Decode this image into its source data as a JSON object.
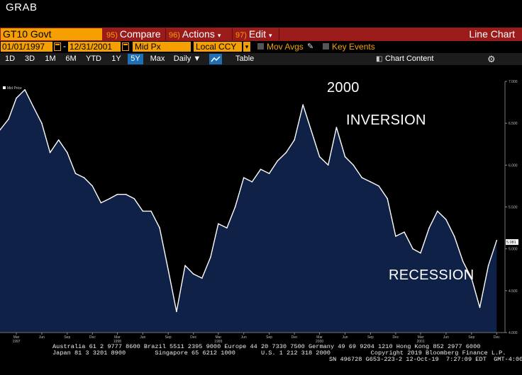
{
  "window": {
    "title": "GRAB"
  },
  "toolbar1": {
    "ticker": "GT10 Govt",
    "compare_num": "95)",
    "compare": "Compare",
    "actions_num": "96)",
    "actions": "Actions",
    "edit_num": "97)",
    "edit": "Edit",
    "view_label": "Line Chart"
  },
  "toolbar2": {
    "start_date": "01/01/1997",
    "end_date": "12/31/2001",
    "separator": "-",
    "field": "Mid Px",
    "currency": "Local CCY",
    "mov_avgs": "Mov Avgs",
    "key_events": "Key Events"
  },
  "toolbar3": {
    "ranges": [
      "1D",
      "3D",
      "1M",
      "6M",
      "YTD",
      "1Y",
      "5Y",
      "Max"
    ],
    "active_range": "5Y",
    "frequency": "Daily",
    "table": "Table",
    "chart_content": "Chart Content"
  },
  "annotations": {
    "year_2000": "2000",
    "inversion": "INVERSION",
    "recession": "RECESSION"
  },
  "colors": {
    "toolbar_red": "#9b1b1b",
    "accent_orange": "#f5a000",
    "area_fill": "#0f2147",
    "line": "#ffffff",
    "active_blue": "#1f6fb5"
  },
  "chart_data": {
    "type": "area",
    "legend": "Mid Price",
    "x_range": [
      "1997-01-01",
      "2001-12-31"
    ],
    "ylim": [
      4.0,
      7.0
    ],
    "y_ticks": [
      "7.000",
      "6.500",
      "6.000",
      "5.500",
      "5.000",
      "4.500",
      "4.000"
    ],
    "last_value_label": "5.081",
    "x_tick_labels": [
      {
        "month": "Mar",
        "year": "1997"
      },
      {
        "month": "Jun",
        "year": ""
      },
      {
        "month": "Sep",
        "year": ""
      },
      {
        "month": "Dec",
        "year": ""
      },
      {
        "month": "Mar",
        "year": "1998"
      },
      {
        "month": "Jun",
        "year": ""
      },
      {
        "month": "Sep",
        "year": ""
      },
      {
        "month": "Dec",
        "year": ""
      },
      {
        "month": "Mar",
        "year": "1999"
      },
      {
        "month": "Jun",
        "year": ""
      },
      {
        "month": "Sep",
        "year": ""
      },
      {
        "month": "Dec",
        "year": ""
      },
      {
        "month": "Mar",
        "year": "2000"
      },
      {
        "month": "Jun",
        "year": ""
      },
      {
        "month": "Sep",
        "year": ""
      },
      {
        "month": "Dec",
        "year": ""
      },
      {
        "month": "Mar",
        "year": "2001"
      },
      {
        "month": "Jun",
        "year": ""
      },
      {
        "month": "Sep",
        "year": ""
      },
      {
        "month": "Dec",
        "year": ""
      }
    ],
    "series": [
      {
        "values": [
          {
            "x": "1997-01-01",
            "y": 6.42
          },
          {
            "x": "1997-02-01",
            "y": 6.55
          },
          {
            "x": "1997-03-01",
            "y": 6.8
          },
          {
            "x": "1997-04-01",
            "y": 6.9
          },
          {
            "x": "1997-05-01",
            "y": 6.7
          },
          {
            "x": "1997-06-01",
            "y": 6.5
          },
          {
            "x": "1997-07-01",
            "y": 6.15
          },
          {
            "x": "1997-08-01",
            "y": 6.3
          },
          {
            "x": "1997-09-01",
            "y": 6.15
          },
          {
            "x": "1997-10-01",
            "y": 5.9
          },
          {
            "x": "1997-11-01",
            "y": 5.85
          },
          {
            "x": "1997-12-01",
            "y": 5.75
          },
          {
            "x": "1998-01-01",
            "y": 5.55
          },
          {
            "x": "1998-02-01",
            "y": 5.6
          },
          {
            "x": "1998-03-01",
            "y": 5.65
          },
          {
            "x": "1998-04-01",
            "y": 5.65
          },
          {
            "x": "1998-05-01",
            "y": 5.6
          },
          {
            "x": "1998-06-01",
            "y": 5.45
          },
          {
            "x": "1998-07-01",
            "y": 5.45
          },
          {
            "x": "1998-08-01",
            "y": 5.25
          },
          {
            "x": "1998-09-01",
            "y": 4.75
          },
          {
            "x": "1998-10-01",
            "y": 4.25
          },
          {
            "x": "1998-11-01",
            "y": 4.8
          },
          {
            "x": "1998-12-01",
            "y": 4.7
          },
          {
            "x": "1999-01-01",
            "y": 4.65
          },
          {
            "x": "1999-02-01",
            "y": 4.9
          },
          {
            "x": "1999-03-01",
            "y": 5.3
          },
          {
            "x": "1999-04-01",
            "y": 5.25
          },
          {
            "x": "1999-05-01",
            "y": 5.5
          },
          {
            "x": "1999-06-01",
            "y": 5.85
          },
          {
            "x": "1999-07-01",
            "y": 5.8
          },
          {
            "x": "1999-08-01",
            "y": 5.95
          },
          {
            "x": "1999-09-01",
            "y": 5.9
          },
          {
            "x": "1999-10-01",
            "y": 6.05
          },
          {
            "x": "1999-11-01",
            "y": 6.15
          },
          {
            "x": "1999-12-01",
            "y": 6.3
          },
          {
            "x": "2000-01-01",
            "y": 6.72
          },
          {
            "x": "2000-02-01",
            "y": 6.4
          },
          {
            "x": "2000-03-01",
            "y": 6.1
          },
          {
            "x": "2000-04-01",
            "y": 6.0
          },
          {
            "x": "2000-05-01",
            "y": 6.45
          },
          {
            "x": "2000-06-01",
            "y": 6.1
          },
          {
            "x": "2000-07-01",
            "y": 6.0
          },
          {
            "x": "2000-08-01",
            "y": 5.85
          },
          {
            "x": "2000-09-01",
            "y": 5.8
          },
          {
            "x": "2000-10-01",
            "y": 5.75
          },
          {
            "x": "2000-11-01",
            "y": 5.6
          },
          {
            "x": "2000-12-01",
            "y": 5.15
          },
          {
            "x": "2001-01-01",
            "y": 5.2
          },
          {
            "x": "2001-02-01",
            "y": 5.0
          },
          {
            "x": "2001-03-01",
            "y": 4.95
          },
          {
            "x": "2001-04-01",
            "y": 5.25
          },
          {
            "x": "2001-05-01",
            "y": 5.45
          },
          {
            "x": "2001-06-01",
            "y": 5.35
          },
          {
            "x": "2001-07-01",
            "y": 5.15
          },
          {
            "x": "2001-08-01",
            "y": 4.85
          },
          {
            "x": "2001-09-01",
            "y": 4.65
          },
          {
            "x": "2001-10-01",
            "y": 4.3
          },
          {
            "x": "2001-11-01",
            "y": 4.8
          },
          {
            "x": "2001-12-01",
            "y": 5.1
          }
        ]
      }
    ]
  },
  "footer": {
    "line1": "Australia 61 2 9777 8600 Brazil 5511 2395 9000 Europe 44 20 7330 7500 Germany 49 69 9204 1210 Hong Kong 852 2977 6000",
    "line2": "Japan 81 3 3201 8900        Singapore 65 6212 1000       U.S. 1 212 318 2000           Copyright 2019 Bloomberg Finance L.P.",
    "line3": "SN 496728 G653-223-2 12-Oct-19  7:27:09 EDT  GMT-4:00"
  }
}
